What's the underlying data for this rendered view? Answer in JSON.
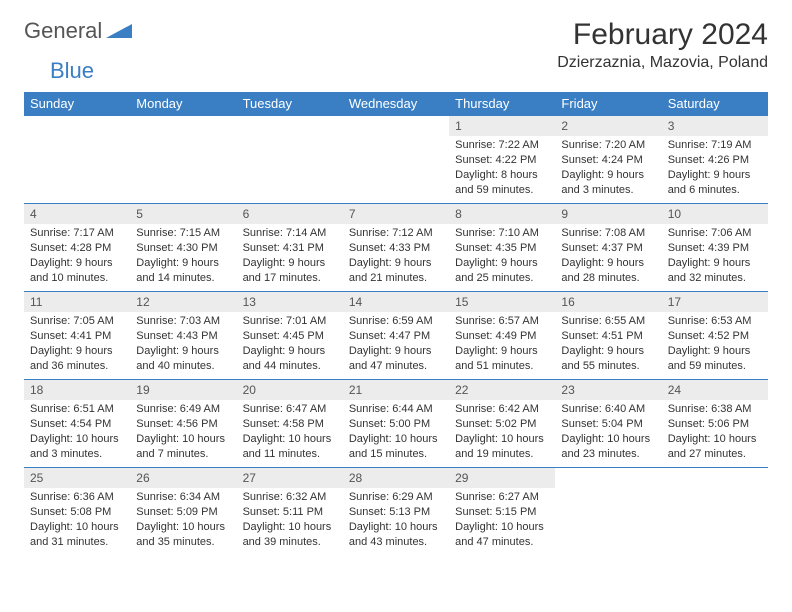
{
  "logo": {
    "general": "General",
    "blue": "Blue"
  },
  "title": "February 2024",
  "location": "Dzierzaznia, Mazovia, Poland",
  "dayHeaders": [
    "Sunday",
    "Monday",
    "Tuesday",
    "Wednesday",
    "Thursday",
    "Friday",
    "Saturday"
  ],
  "colors": {
    "headerBg": "#3a7fc4",
    "headerText": "#ffffff",
    "dayNumBg": "#ececec",
    "border": "#3a7fc4",
    "bodyText": "#333333"
  },
  "fonts": {
    "title_pt": 30,
    "location_pt": 16,
    "dayHeader_pt": 13,
    "dayNum_pt": 12,
    "cell_pt": 11
  },
  "weeks": [
    [
      {
        "empty": true
      },
      {
        "empty": true
      },
      {
        "empty": true
      },
      {
        "empty": true
      },
      {
        "num": "1",
        "sunrise": "Sunrise: 7:22 AM",
        "sunset": "Sunset: 4:22 PM",
        "daylight": "Daylight: 8 hours and 59 minutes."
      },
      {
        "num": "2",
        "sunrise": "Sunrise: 7:20 AM",
        "sunset": "Sunset: 4:24 PM",
        "daylight": "Daylight: 9 hours and 3 minutes."
      },
      {
        "num": "3",
        "sunrise": "Sunrise: 7:19 AM",
        "sunset": "Sunset: 4:26 PM",
        "daylight": "Daylight: 9 hours and 6 minutes."
      }
    ],
    [
      {
        "num": "4",
        "sunrise": "Sunrise: 7:17 AM",
        "sunset": "Sunset: 4:28 PM",
        "daylight": "Daylight: 9 hours and 10 minutes."
      },
      {
        "num": "5",
        "sunrise": "Sunrise: 7:15 AM",
        "sunset": "Sunset: 4:30 PM",
        "daylight": "Daylight: 9 hours and 14 minutes."
      },
      {
        "num": "6",
        "sunrise": "Sunrise: 7:14 AM",
        "sunset": "Sunset: 4:31 PM",
        "daylight": "Daylight: 9 hours and 17 minutes."
      },
      {
        "num": "7",
        "sunrise": "Sunrise: 7:12 AM",
        "sunset": "Sunset: 4:33 PM",
        "daylight": "Daylight: 9 hours and 21 minutes."
      },
      {
        "num": "8",
        "sunrise": "Sunrise: 7:10 AM",
        "sunset": "Sunset: 4:35 PM",
        "daylight": "Daylight: 9 hours and 25 minutes."
      },
      {
        "num": "9",
        "sunrise": "Sunrise: 7:08 AM",
        "sunset": "Sunset: 4:37 PM",
        "daylight": "Daylight: 9 hours and 28 minutes."
      },
      {
        "num": "10",
        "sunrise": "Sunrise: 7:06 AM",
        "sunset": "Sunset: 4:39 PM",
        "daylight": "Daylight: 9 hours and 32 minutes."
      }
    ],
    [
      {
        "num": "11",
        "sunrise": "Sunrise: 7:05 AM",
        "sunset": "Sunset: 4:41 PM",
        "daylight": "Daylight: 9 hours and 36 minutes."
      },
      {
        "num": "12",
        "sunrise": "Sunrise: 7:03 AM",
        "sunset": "Sunset: 4:43 PM",
        "daylight": "Daylight: 9 hours and 40 minutes."
      },
      {
        "num": "13",
        "sunrise": "Sunrise: 7:01 AM",
        "sunset": "Sunset: 4:45 PM",
        "daylight": "Daylight: 9 hours and 44 minutes."
      },
      {
        "num": "14",
        "sunrise": "Sunrise: 6:59 AM",
        "sunset": "Sunset: 4:47 PM",
        "daylight": "Daylight: 9 hours and 47 minutes."
      },
      {
        "num": "15",
        "sunrise": "Sunrise: 6:57 AM",
        "sunset": "Sunset: 4:49 PM",
        "daylight": "Daylight: 9 hours and 51 minutes."
      },
      {
        "num": "16",
        "sunrise": "Sunrise: 6:55 AM",
        "sunset": "Sunset: 4:51 PM",
        "daylight": "Daylight: 9 hours and 55 minutes."
      },
      {
        "num": "17",
        "sunrise": "Sunrise: 6:53 AM",
        "sunset": "Sunset: 4:52 PM",
        "daylight": "Daylight: 9 hours and 59 minutes."
      }
    ],
    [
      {
        "num": "18",
        "sunrise": "Sunrise: 6:51 AM",
        "sunset": "Sunset: 4:54 PM",
        "daylight": "Daylight: 10 hours and 3 minutes."
      },
      {
        "num": "19",
        "sunrise": "Sunrise: 6:49 AM",
        "sunset": "Sunset: 4:56 PM",
        "daylight": "Daylight: 10 hours and 7 minutes."
      },
      {
        "num": "20",
        "sunrise": "Sunrise: 6:47 AM",
        "sunset": "Sunset: 4:58 PM",
        "daylight": "Daylight: 10 hours and 11 minutes."
      },
      {
        "num": "21",
        "sunrise": "Sunrise: 6:44 AM",
        "sunset": "Sunset: 5:00 PM",
        "daylight": "Daylight: 10 hours and 15 minutes."
      },
      {
        "num": "22",
        "sunrise": "Sunrise: 6:42 AM",
        "sunset": "Sunset: 5:02 PM",
        "daylight": "Daylight: 10 hours and 19 minutes."
      },
      {
        "num": "23",
        "sunrise": "Sunrise: 6:40 AM",
        "sunset": "Sunset: 5:04 PM",
        "daylight": "Daylight: 10 hours and 23 minutes."
      },
      {
        "num": "24",
        "sunrise": "Sunrise: 6:38 AM",
        "sunset": "Sunset: 5:06 PM",
        "daylight": "Daylight: 10 hours and 27 minutes."
      }
    ],
    [
      {
        "num": "25",
        "sunrise": "Sunrise: 6:36 AM",
        "sunset": "Sunset: 5:08 PM",
        "daylight": "Daylight: 10 hours and 31 minutes."
      },
      {
        "num": "26",
        "sunrise": "Sunrise: 6:34 AM",
        "sunset": "Sunset: 5:09 PM",
        "daylight": "Daylight: 10 hours and 35 minutes."
      },
      {
        "num": "27",
        "sunrise": "Sunrise: 6:32 AM",
        "sunset": "Sunset: 5:11 PM",
        "daylight": "Daylight: 10 hours and 39 minutes."
      },
      {
        "num": "28",
        "sunrise": "Sunrise: 6:29 AM",
        "sunset": "Sunset: 5:13 PM",
        "daylight": "Daylight: 10 hours and 43 minutes."
      },
      {
        "num": "29",
        "sunrise": "Sunrise: 6:27 AM",
        "sunset": "Sunset: 5:15 PM",
        "daylight": "Daylight: 10 hours and 47 minutes."
      },
      {
        "empty": true
      },
      {
        "empty": true
      }
    ]
  ]
}
